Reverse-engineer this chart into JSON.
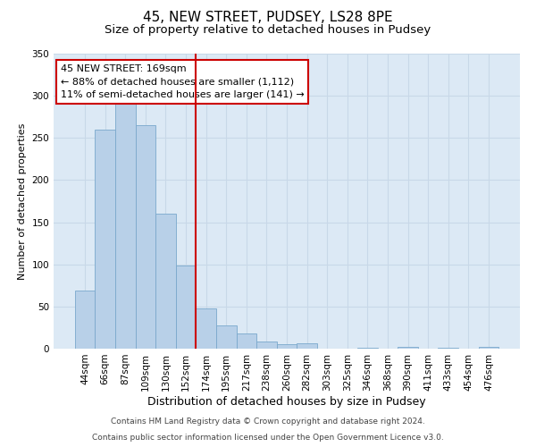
{
  "title": "45, NEW STREET, PUDSEY, LS28 8PE",
  "subtitle": "Size of property relative to detached houses in Pudsey",
  "xlabel": "Distribution of detached houses by size in Pudsey",
  "ylabel": "Number of detached properties",
  "bar_labels": [
    "44sqm",
    "66sqm",
    "87sqm",
    "109sqm",
    "130sqm",
    "152sqm",
    "174sqm",
    "195sqm",
    "217sqm",
    "238sqm",
    "260sqm",
    "282sqm",
    "303sqm",
    "325sqm",
    "346sqm",
    "368sqm",
    "390sqm",
    "411sqm",
    "433sqm",
    "454sqm",
    "476sqm"
  ],
  "bar_values": [
    69,
    260,
    292,
    265,
    160,
    99,
    48,
    28,
    18,
    9,
    5,
    6,
    0,
    0,
    1,
    0,
    2,
    0,
    1,
    0,
    2
  ],
  "bar_color": "#b8d0e8",
  "bar_edge_color": "#7aa8cc",
  "vline_x": 5.5,
  "vline_color": "#cc0000",
  "annotation_line1": "45 NEW STREET: 169sqm",
  "annotation_line2": "← 88% of detached houses are smaller (1,112)",
  "annotation_line3": "11% of semi-detached houses are larger (141) →",
  "annotation_box_color": "#ffffff",
  "annotation_box_edge_color": "#cc0000",
  "ylim": [
    0,
    350
  ],
  "yticks": [
    0,
    50,
    100,
    150,
    200,
    250,
    300,
    350
  ],
  "grid_color": "#c8d8e8",
  "background_color": "#dce9f5",
  "footnote1": "Contains HM Land Registry data © Crown copyright and database right 2024.",
  "footnote2": "Contains public sector information licensed under the Open Government Licence v3.0.",
  "title_fontsize": 11,
  "subtitle_fontsize": 9.5,
  "xlabel_fontsize": 9,
  "ylabel_fontsize": 8,
  "tick_fontsize": 7.5,
  "annotation_fontsize": 8,
  "footnote_fontsize": 6.5
}
